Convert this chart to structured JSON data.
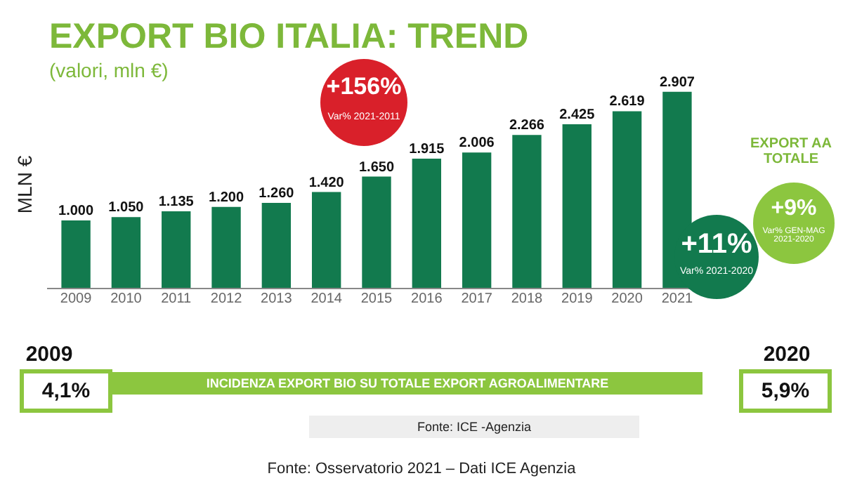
{
  "chart_data": {
    "type": "bar",
    "title": "EXPORT BIO ITALIA: TREND",
    "subtitle": "(valori, mln €)",
    "ylabel": "MLN €",
    "categories": [
      "2009",
      "2010",
      "2011",
      "2012",
      "2013",
      "2014",
      "2015",
      "2016",
      "2017",
      "2018",
      "2019",
      "2020",
      "2021"
    ],
    "values": [
      1000,
      1050,
      1135,
      1200,
      1260,
      1420,
      1650,
      1915,
      2006,
      2266,
      2425,
      2619,
      2907
    ],
    "value_labels": [
      "1.000",
      "1.050",
      "1.135",
      "1.200",
      "1.260",
      "1.420",
      "1.650",
      "1.915",
      "2.006",
      "2.266",
      "2.425",
      "2.619",
      "2.907"
    ],
    "color": "#127a4e",
    "tick_labels": "x",
    "annotations": [
      "+156%",
      "Var% 2021-2011",
      "+11%",
      "Var% 2021-2020",
      "EXPORT AA TOTALE",
      "+9%",
      "Var% GEN-MAG 2021-2020",
      "2009",
      "4,1%",
      "2020",
      "5,9%",
      "INCIDENZA EXPORT BIO SU TOTALE EXPORT AGROALIMENTARE",
      "Fonte: ICE -Agenzia",
      "Fonte: Osservatorio 2021 – Dati ICE Agenzia"
    ]
  }
}
